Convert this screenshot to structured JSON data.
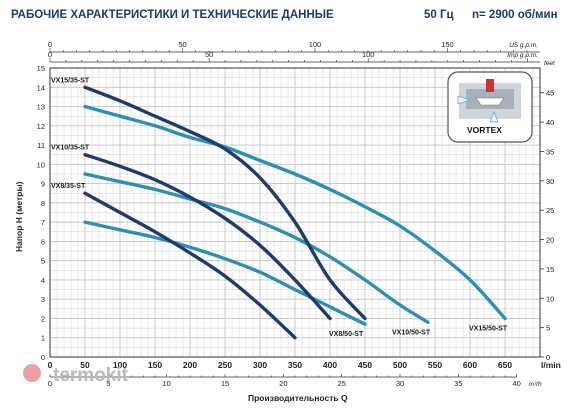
{
  "header": {
    "title": "РАБОЧИЕ ХАРАКТЕРИСТИКИ И ТЕХНИЧЕСКИЕ ДАННЫЕ",
    "frequency": "50 Гц",
    "speed": "n= 2900 об/мин"
  },
  "inset": {
    "label": "VORTEX"
  },
  "watermark": "termokit",
  "colors": {
    "dark_series": "#1f3a6b",
    "light_series": "#2c8fb3",
    "grid": "#c4c4c4",
    "title": "#1d3a6e",
    "arrow": "#d9e8f5"
  },
  "chart_data": {
    "type": "line",
    "title": "РАБОЧИЕ ХАРАКТЕРИСТИКИ И ТЕХНИЧЕСКИЕ ДАННЫЕ",
    "xlabel": "Производительность Q",
    "ylabel": "Напор H (метры)",
    "xunit": "l/min",
    "xlim": [
      0,
      700
    ],
    "ylim": [
      0,
      15
    ],
    "grid": true,
    "x_ticks": [
      0,
      50,
      100,
      150,
      200,
      250,
      300,
      350,
      400,
      450,
      500,
      550,
      600,
      650
    ],
    "y_ticks": [
      0,
      1,
      2,
      3,
      4,
      5,
      6,
      7,
      8,
      9,
      10,
      11,
      12,
      13,
      14,
      15
    ],
    "right_axis": {
      "unit": "feet",
      "ticks": [
        0,
        5,
        10,
        15,
        20,
        25,
        30,
        35,
        40,
        45
      ]
    },
    "bottom_m3h_axis": {
      "unit": "m³/h",
      "ticks": [
        0,
        5,
        10,
        15,
        20,
        25,
        30,
        35,
        40
      ]
    },
    "top_us_axis": {
      "unit": "US g.p.m.",
      "ticks": [
        0,
        50,
        100,
        150
      ]
    },
    "top_imp_axis": {
      "unit": "Imp g.p.m.",
      "ticks": [
        0,
        50,
        100
      ]
    },
    "series": [
      {
        "name": "VX15/35-ST",
        "style": "dark",
        "label_pos": "start",
        "points": [
          [
            50,
            14
          ],
          [
            100,
            13.3
          ],
          [
            150,
            12.5
          ],
          [
            200,
            11.7
          ],
          [
            250,
            10.8
          ],
          [
            300,
            9.3
          ],
          [
            350,
            7.0
          ],
          [
            400,
            4.0
          ],
          [
            450,
            2.0
          ]
        ]
      },
      {
        "name": "VX10/35-ST",
        "style": "dark",
        "label_pos": "start",
        "points": [
          [
            50,
            10.5
          ],
          [
            100,
            9.9
          ],
          [
            150,
            9.2
          ],
          [
            200,
            8.3
          ],
          [
            250,
            7.2
          ],
          [
            300,
            5.8
          ],
          [
            350,
            4.0
          ],
          [
            400,
            2.0
          ]
        ]
      },
      {
        "name": "VX8/35-ST",
        "style": "dark",
        "label_pos": "start",
        "points": [
          [
            50,
            8.5
          ],
          [
            100,
            7.5
          ],
          [
            150,
            6.5
          ],
          [
            200,
            5.4
          ],
          [
            250,
            4.2
          ],
          [
            300,
            2.7
          ],
          [
            350,
            1.0
          ]
        ]
      },
      {
        "name": "VX15/50-ST",
        "style": "light",
        "label_pos": "end",
        "points": [
          [
            50,
            13
          ],
          [
            100,
            12.5
          ],
          [
            150,
            12
          ],
          [
            200,
            11.4
          ],
          [
            250,
            10.9
          ],
          [
            300,
            10.2
          ],
          [
            350,
            9.5
          ],
          [
            400,
            8.7
          ],
          [
            450,
            7.8
          ],
          [
            500,
            6.8
          ],
          [
            550,
            5.5
          ],
          [
            600,
            4.0
          ],
          [
            650,
            2.0
          ]
        ]
      },
      {
        "name": "VX10/50-ST",
        "style": "light",
        "label_pos": "end",
        "points": [
          [
            50,
            9.5
          ],
          [
            100,
            9.1
          ],
          [
            150,
            8.7
          ],
          [
            200,
            8.2
          ],
          [
            250,
            7.7
          ],
          [
            300,
            7.0
          ],
          [
            350,
            6.2
          ],
          [
            400,
            5.2
          ],
          [
            450,
            4.0
          ],
          [
            500,
            2.7
          ],
          [
            540,
            1.8
          ]
        ]
      },
      {
        "name": "VX8/50-ST",
        "style": "light",
        "label_pos": "end",
        "points": [
          [
            50,
            7
          ],
          [
            100,
            6.6
          ],
          [
            150,
            6.2
          ],
          [
            200,
            5.7
          ],
          [
            250,
            5.1
          ],
          [
            300,
            4.4
          ],
          [
            350,
            3.5
          ],
          [
            400,
            2.6
          ],
          [
            450,
            1.7
          ]
        ]
      }
    ]
  }
}
